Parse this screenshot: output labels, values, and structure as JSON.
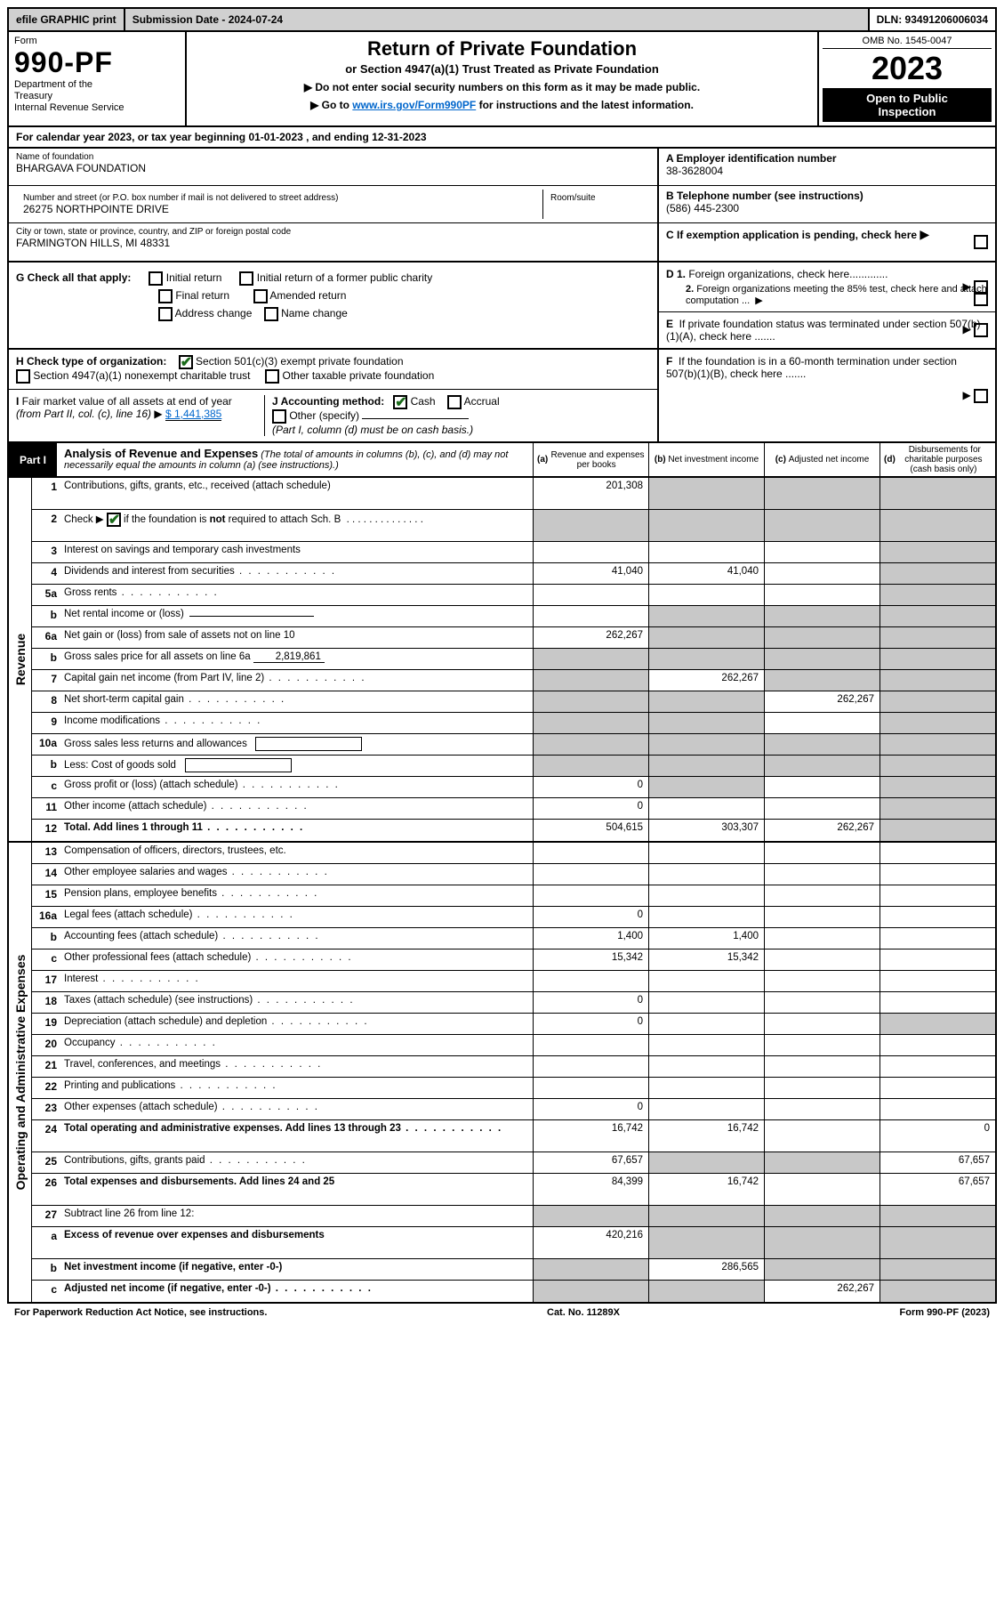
{
  "topbar": {
    "efile": "efile GRAPHIC print",
    "subdate": "Submission Date - 2024-07-24",
    "dln": "DLN: 93491206006034"
  },
  "header": {
    "form_label": "Form",
    "form_num": "990-PF",
    "dept": "Department of the Treasury\nInternal Revenue Service",
    "title": "Return of Private Foundation",
    "subtitle": "or Section 4947(a)(1) Trust Treated as Private Foundation",
    "instr1": "▶ Do not enter social security numbers on this form as it may be made public.",
    "instr2_pre": "▶ Go to ",
    "instr2_link": "www.irs.gov/Form990PF",
    "instr2_post": " for instructions and the latest information.",
    "omb": "OMB No. 1545-0047",
    "year": "2023",
    "open": "Open to Public Inspection"
  },
  "calyear": "For calendar year 2023, or tax year beginning 01-01-2023                          , and ending 12-31-2023",
  "info": {
    "name_label": "Name of foundation",
    "name": "BHARGAVA FOUNDATION",
    "addr_label": "Number and street (or P.O. box number if mail is not delivered to street address)",
    "addr": "26275 NORTHPOINTE DRIVE",
    "room_label": "Room/suite",
    "city_label": "City or town, state or province, country, and ZIP or foreign postal code",
    "city": "FARMINGTON HILLS, MI  48331",
    "a_label": "A Employer identification number",
    "a_val": "38-3628004",
    "b_label": "B Telephone number (see instructions)",
    "b_val": "(586) 445-2300",
    "c_label": "C If exemption application is pending, check here"
  },
  "g": {
    "label": "G Check all that apply:",
    "opts": [
      "Initial return",
      "Initial return of a former public charity",
      "Final return",
      "Amended return",
      "Address change",
      "Name change"
    ],
    "d1": "D 1. Foreign organizations, check here.............",
    "d2": "2. Foreign organizations meeting the 85% test, check here and attach computation ...",
    "e": "E  If private foundation status was terminated under section 507(b)(1)(A), check here ......."
  },
  "h": {
    "label": "H Check type of organization:",
    "opts": [
      "Section 501(c)(3) exempt private foundation",
      "Section 4947(a)(1) nonexempt charitable trust",
      "Other taxable private foundation"
    ],
    "i_label": "I Fair market value of all assets at end of year (from Part II, col. (c), line 16) ▶",
    "i_val": "$  1,441,385",
    "j_label": "J Accounting method:",
    "j_opts": [
      "Cash",
      "Accrual",
      "Other (specify)"
    ],
    "j_note": "(Part I, column (d) must be on cash basis.)",
    "f": "F  If the foundation is in a 60-month termination under section 507(b)(1)(B), check here ......."
  },
  "part1": {
    "badge": "Part I",
    "title": "Analysis of Revenue and Expenses",
    "note": "(The total of amounts in columns (b), (c), and (d) may not necessarily equal the amounts in column (a) (see instructions).)",
    "cols": [
      "(a)    Revenue and expenses per books",
      "(b)    Net investment income",
      "(c)    Adjusted net income",
      "(d)   Disbursements for charitable purposes (cash basis only)"
    ]
  },
  "revenue_label": "Revenue",
  "expenses_label": "Operating and Administrative Expenses",
  "rows": [
    {
      "n": "1",
      "d": "Contributions, gifts, grants, etc., received (attach schedule)",
      "a": "201,308",
      "b": "",
      "c": "",
      "dd": "",
      "tall": true,
      "shade_b": true,
      "shade_c": true,
      "shade_d": true
    },
    {
      "n": "2",
      "d": "Check ▶ ☑ if the foundation is not required to attach Sch. B",
      "dots": true,
      "a": "",
      "b": "",
      "c": "",
      "dd": "",
      "shade_a": true,
      "shade_b": true,
      "shade_c": true,
      "shade_d": true,
      "tall": true,
      "checked": true
    },
    {
      "n": "3",
      "d": "Interest on savings and temporary cash investments",
      "a": "",
      "b": "",
      "c": "",
      "dd": "",
      "shade_d": true
    },
    {
      "n": "4",
      "d": "Dividends and interest from securities",
      "dots": true,
      "a": "41,040",
      "b": "41,040",
      "c": "",
      "dd": "",
      "shade_d": true
    },
    {
      "n": "5a",
      "d": "Gross rents",
      "dots": true,
      "a": "",
      "b": "",
      "c": "",
      "dd": "",
      "shade_d": true
    },
    {
      "n": "b",
      "d": "Net rental income or (loss)",
      "a": "",
      "b": "",
      "c": "",
      "dd": "",
      "shade_a": false,
      "inline": true,
      "shade_b": true,
      "shade_c": true,
      "shade_d": true
    },
    {
      "n": "6a",
      "d": "Net gain or (loss) from sale of assets not on line 10",
      "a": "262,267",
      "b": "",
      "c": "",
      "dd": "",
      "shade_b": true,
      "shade_c": true,
      "shade_d": true
    },
    {
      "n": "b",
      "d": "Gross sales price for all assets on line 6a",
      "a": "",
      "b": "",
      "c": "",
      "dd": "",
      "inline_val": "2,819,861",
      "shade_a": true,
      "shade_b": true,
      "shade_c": true,
      "shade_d": true
    },
    {
      "n": "7",
      "d": "Capital gain net income (from Part IV, line 2)",
      "dots": true,
      "a": "",
      "b": "262,267",
      "c": "",
      "dd": "",
      "shade_a": true,
      "shade_c": true,
      "shade_d": true
    },
    {
      "n": "8",
      "d": "Net short-term capital gain",
      "dots": true,
      "a": "",
      "b": "",
      "c": "262,267",
      "dd": "",
      "shade_a": true,
      "shade_b": true,
      "shade_d": true
    },
    {
      "n": "9",
      "d": "Income modifications",
      "dots": true,
      "a": "",
      "b": "",
      "c": "",
      "dd": "",
      "shade_a": true,
      "shade_b": true,
      "shade_d": true
    },
    {
      "n": "10a",
      "d": "Gross sales less returns and allowances",
      "a": "",
      "b": "",
      "c": "",
      "dd": "",
      "sub": true,
      "shade_b": true,
      "shade_c": true,
      "shade_d": true,
      "shade_a": true
    },
    {
      "n": "b",
      "d": "Less: Cost of goods sold",
      "dots": true,
      "a": "",
      "b": "",
      "c": "",
      "dd": "",
      "sub": true,
      "shade_b": true,
      "shade_c": true,
      "shade_d": true,
      "shade_a": true
    },
    {
      "n": "c",
      "d": "Gross profit or (loss) (attach schedule)",
      "dots": true,
      "a": "0",
      "b": "",
      "c": "",
      "dd": "",
      "shade_b": true,
      "shade_d": true
    },
    {
      "n": "11",
      "d": "Other income (attach schedule)",
      "dots": true,
      "a": "0",
      "b": "",
      "c": "",
      "dd": "",
      "shade_d": true
    },
    {
      "n": "12",
      "d": "Total. Add lines 1 through 11",
      "dots": true,
      "bold": true,
      "a": "504,615",
      "b": "303,307",
      "c": "262,267",
      "dd": "",
      "shade_d": true
    }
  ],
  "exp_rows": [
    {
      "n": "13",
      "d": "Compensation of officers, directors, trustees, etc.",
      "a": "",
      "b": "",
      "c": "",
      "dd": ""
    },
    {
      "n": "14",
      "d": "Other employee salaries and wages",
      "dots": true,
      "a": "",
      "b": "",
      "c": "",
      "dd": ""
    },
    {
      "n": "15",
      "d": "Pension plans, employee benefits",
      "dots": true,
      "a": "",
      "b": "",
      "c": "",
      "dd": ""
    },
    {
      "n": "16a",
      "d": "Legal fees (attach schedule)",
      "dots": true,
      "a": "0",
      "b": "",
      "c": "",
      "dd": ""
    },
    {
      "n": "b",
      "d": "Accounting fees (attach schedule)",
      "dots": true,
      "a": "1,400",
      "b": "1,400",
      "c": "",
      "dd": ""
    },
    {
      "n": "c",
      "d": "Other professional fees (attach schedule)",
      "dots": true,
      "a": "15,342",
      "b": "15,342",
      "c": "",
      "dd": ""
    },
    {
      "n": "17",
      "d": "Interest",
      "dots": true,
      "a": "",
      "b": "",
      "c": "",
      "dd": ""
    },
    {
      "n": "18",
      "d": "Taxes (attach schedule) (see instructions)",
      "dots": true,
      "a": "0",
      "b": "",
      "c": "",
      "dd": ""
    },
    {
      "n": "19",
      "d": "Depreciation (attach schedule) and depletion",
      "dots": true,
      "a": "0",
      "b": "",
      "c": "",
      "dd": "",
      "shade_d": true
    },
    {
      "n": "20",
      "d": "Occupancy",
      "dots": true,
      "a": "",
      "b": "",
      "c": "",
      "dd": ""
    },
    {
      "n": "21",
      "d": "Travel, conferences, and meetings",
      "dots": true,
      "a": "",
      "b": "",
      "c": "",
      "dd": ""
    },
    {
      "n": "22",
      "d": "Printing and publications",
      "dots": true,
      "a": "",
      "b": "",
      "c": "",
      "dd": ""
    },
    {
      "n": "23",
      "d": "Other expenses (attach schedule)",
      "dots": true,
      "a": "0",
      "b": "",
      "c": "",
      "dd": ""
    },
    {
      "n": "24",
      "d": "Total operating and administrative expenses. Add lines 13 through 23",
      "dots": true,
      "bold": true,
      "a": "16,742",
      "b": "16,742",
      "c": "",
      "dd": "0",
      "tall": true
    },
    {
      "n": "25",
      "d": "Contributions, gifts, grants paid",
      "dots": true,
      "a": "67,657",
      "b": "",
      "c": "",
      "dd": "67,657",
      "shade_b": true,
      "shade_c": true
    },
    {
      "n": "26",
      "d": "Total expenses and disbursements. Add lines 24 and 25",
      "bold": true,
      "a": "84,399",
      "b": "16,742",
      "c": "",
      "dd": "67,657",
      "tall": true
    },
    {
      "n": "27",
      "d": "Subtract line 26 from line 12:",
      "bold": false,
      "a": "",
      "b": "",
      "c": "",
      "dd": "",
      "shade_a": true,
      "shade_b": true,
      "shade_c": true,
      "shade_d": true
    },
    {
      "n": "a",
      "d": "Excess of revenue over expenses and disbursements",
      "bold": true,
      "a": "420,216",
      "b": "",
      "c": "",
      "dd": "",
      "shade_b": true,
      "shade_c": true,
      "shade_d": true,
      "tall": true
    },
    {
      "n": "b",
      "d": "Net investment income (if negative, enter -0-)",
      "bold": true,
      "a": "",
      "b": "286,565",
      "c": "",
      "dd": "",
      "shade_a": true,
      "shade_c": true,
      "shade_d": true
    },
    {
      "n": "c",
      "d": "Adjusted net income (if negative, enter -0-)",
      "dots": true,
      "bold": true,
      "a": "",
      "b": "",
      "c": "262,267",
      "dd": "",
      "shade_a": true,
      "shade_b": true,
      "shade_d": true
    }
  ],
  "footer": {
    "left": "For Paperwork Reduction Act Notice, see instructions.",
    "mid": "Cat. No. 11289X",
    "right": "Form 990-PF (2023)"
  },
  "colors": {
    "shade": "#c8c8c8",
    "link": "#0066cc",
    "check": "#1a6b1a"
  }
}
